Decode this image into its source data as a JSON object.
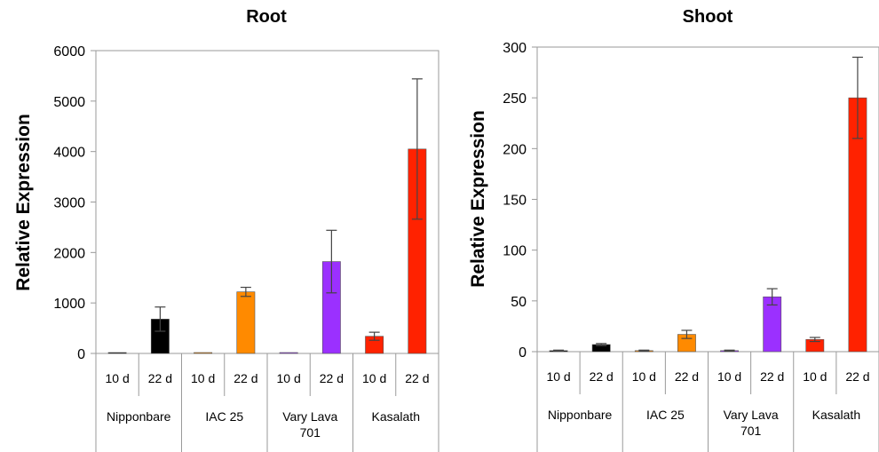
{
  "chart_data": [
    {
      "type": "bar",
      "title": "Root",
      "ylabel": "Relative Expression",
      "ylim": [
        0,
        6000
      ],
      "yticks": [
        "0",
        "1000",
        "2000",
        "3000",
        "4000",
        "5000",
        "6000"
      ],
      "ytick_values": [
        0,
        1000,
        2000,
        3000,
        4000,
        5000,
        6000
      ],
      "categories": [
        "10 d",
        "22 d",
        "10 d",
        "22 d",
        "10 d",
        "22 d",
        "10 d",
        "22 d"
      ],
      "groups": [
        "Nipponbare",
        "IAC 25",
        "Vary Lava 701",
        "Kasalath"
      ],
      "values": [
        5,
        680,
        5,
        1220,
        5,
        1820,
        340,
        4050
      ],
      "errors": [
        0,
        240,
        0,
        90,
        0,
        620,
        80,
        1390
      ],
      "colors": [
        "#000000",
        "#000000",
        "#ff8a00",
        "#ff8a00",
        "#9b30ff",
        "#9b30ff",
        "#ff2200",
        "#ff2200"
      ],
      "grid": false
    },
    {
      "type": "bar",
      "title": "Shoot",
      "ylabel": "Relative Expression",
      "ylim": [
        0,
        300
      ],
      "yticks": [
        "0",
        "50",
        "100",
        "150",
        "200",
        "250",
        "300"
      ],
      "ytick_values": [
        0,
        50,
        100,
        150,
        200,
        250,
        300
      ],
      "categories": [
        "10 d",
        "22 d",
        "10 d",
        "22 d",
        "10 d",
        "22 d",
        "10 d",
        "22 d"
      ],
      "groups": [
        "Nipponbare",
        "IAC 25",
        "Vary Lava 701",
        "Kasalath"
      ],
      "values": [
        1,
        7,
        1,
        17,
        1,
        54,
        12,
        250
      ],
      "errors": [
        0.5,
        1,
        0.5,
        4,
        0.5,
        8,
        2,
        40
      ],
      "colors": [
        "#000000",
        "#000000",
        "#ff8a00",
        "#ff8a00",
        "#9b30ff",
        "#9b30ff",
        "#ff2200",
        "#ff2200"
      ],
      "grid": false
    }
  ]
}
